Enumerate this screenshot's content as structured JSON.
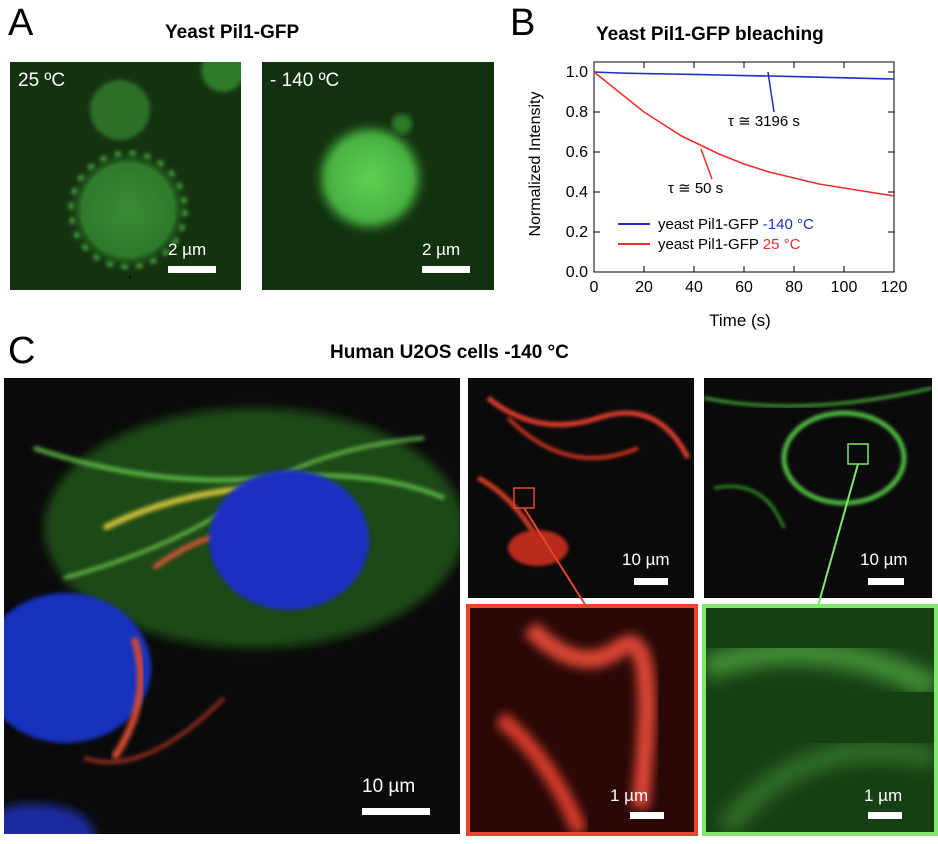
{
  "panel_a": {
    "letter": "A",
    "title": "Yeast Pil1-GFP",
    "left_temp": "25 ºC",
    "right_temp": "- 140 ºC",
    "scale_left": "2 µm",
    "scale_right": "2 µm"
  },
  "panel_b": {
    "letter": "B",
    "tau_blue": "τ ≅ 3196 s",
    "tau_red": "τ ≅ 50 s"
  },
  "panel_c": {
    "letter": "C",
    "title": "Human U2OS cells -140 °C",
    "scale_main": "10 µm",
    "scale_red_top": "10 µm",
    "scale_green_top": "10 µm",
    "scale_red_zoom": "1 µm",
    "scale_green_zoom": "1 µm"
  },
  "colors": {
    "blue_series": "#1f2fbf",
    "red_series": "#e8302a",
    "zoom_red_border": "#e8452f",
    "zoom_green_border": "#7fe86a"
  },
  "chart_data": {
    "type": "line",
    "title": "Yeast Pil1-GFP bleaching",
    "xlabel": "Time (s)",
    "ylabel": "Normalized Intensity",
    "xlim": [
      0,
      120
    ],
    "ylim": [
      0,
      1.05
    ],
    "xticks": [
      0,
      20,
      40,
      60,
      80,
      100,
      120
    ],
    "yticks": [
      0.0,
      0.2,
      0.4,
      0.6,
      0.8,
      1.0
    ],
    "grid": false,
    "legend_position": "bottom",
    "series": [
      {
        "name": "yeast Pil1-GFP",
        "legend_suffix": "-140 °C",
        "color": "#1f2fbf",
        "x": [
          0,
          10,
          20,
          30,
          40,
          50,
          60,
          70,
          80,
          90,
          100,
          110,
          120
        ],
        "y": [
          1.0,
          0.995,
          0.992,
          0.99,
          0.988,
          0.985,
          0.982,
          0.98,
          0.977,
          0.974,
          0.971,
          0.968,
          0.965
        ]
      },
      {
        "name": "yeast Pil1-GFP",
        "legend_suffix": "25 °C",
        "color": "#e8302a",
        "x": [
          0,
          5,
          10,
          15,
          20,
          25,
          30,
          35,
          40,
          45,
          50,
          60,
          70,
          80,
          90,
          100,
          110,
          120
        ],
        "y": [
          1.0,
          0.95,
          0.9,
          0.85,
          0.8,
          0.76,
          0.72,
          0.68,
          0.65,
          0.62,
          0.59,
          0.54,
          0.5,
          0.47,
          0.44,
          0.42,
          0.4,
          0.38
        ]
      }
    ]
  }
}
